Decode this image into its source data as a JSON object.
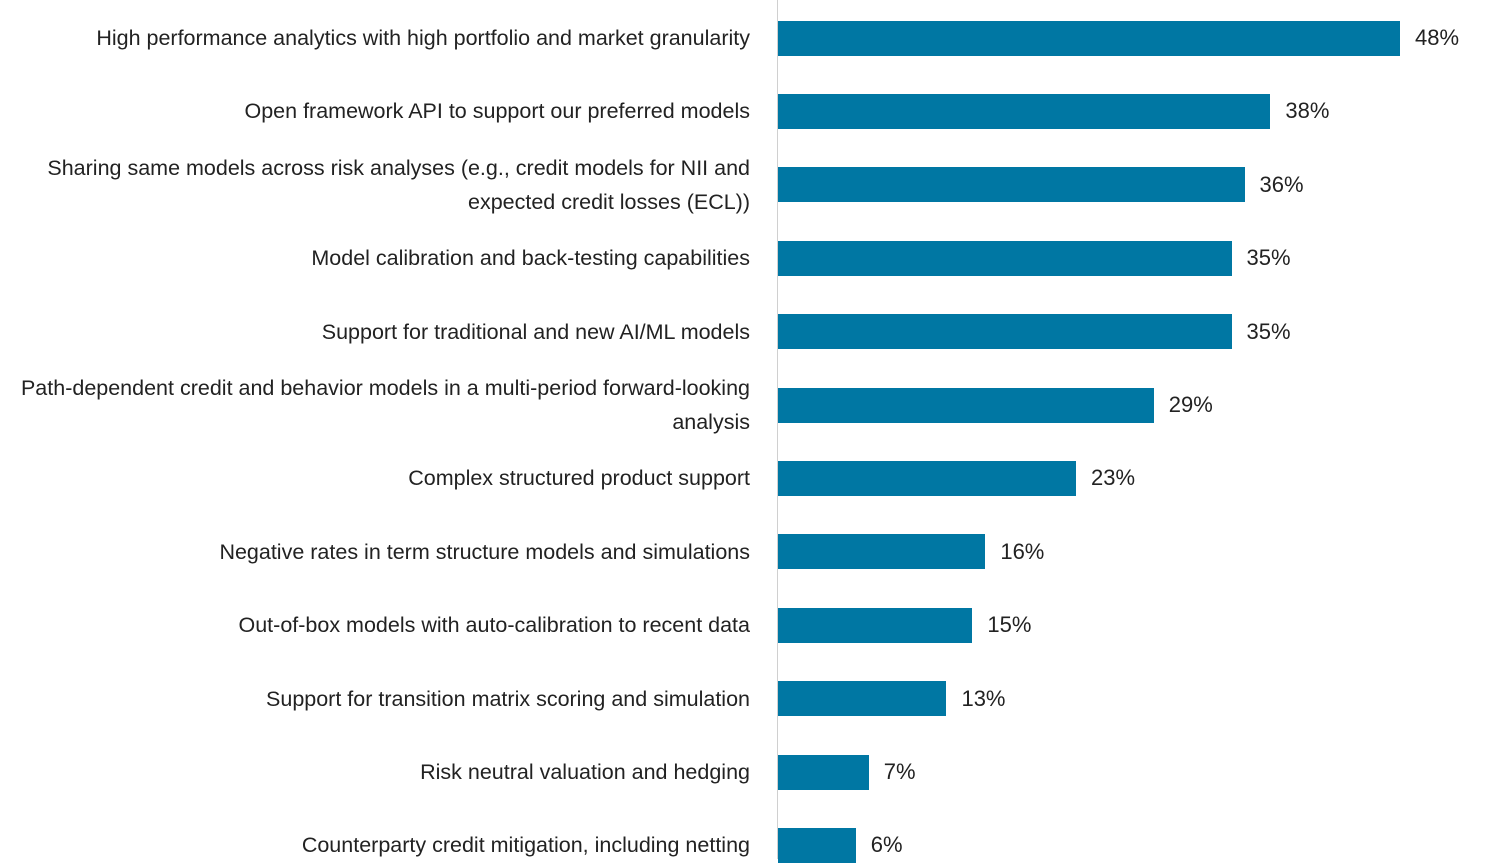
{
  "chart_data": {
    "type": "bar",
    "orientation": "horizontal",
    "categories": [
      "High performance analytics with high portfolio and market granularity",
      "Open framework API to support our preferred models",
      "Sharing same models across risk analyses (e.g., credit models for NII and expected credit losses (ECL))",
      "Model calibration and back-testing capabilities",
      "Support for traditional and new AI/ML models",
      "Path-dependent credit and behavior models in a multi-period forward-looking analysis",
      "Complex structured product support",
      "Negative rates in term structure models and simulations",
      "Out-of-box models with auto-calibration to recent data",
      "Support for transition matrix scoring and simulation",
      "Risk neutral valuation and hedging",
      "Counterparty credit mitigation, including netting"
    ],
    "values": [
      48,
      38,
      36,
      35,
      35,
      29,
      23,
      16,
      15,
      13,
      7,
      6
    ],
    "value_labels": [
      "48%",
      "38%",
      "36%",
      "35%",
      "35%",
      "29%",
      "23%",
      "16%",
      "15%",
      "13%",
      "7%",
      "6%"
    ],
    "color": "#0077a3",
    "xlim": [
      0,
      48
    ]
  }
}
